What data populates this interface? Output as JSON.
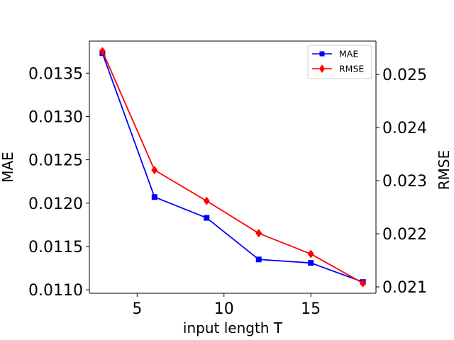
{
  "chart_data": {
    "type": "line",
    "xlabel": "input length T",
    "xlim": [
      2.25,
      18.75
    ],
    "xticks": [
      5,
      10,
      15
    ],
    "x": [
      3,
      6,
      9,
      12,
      15,
      18
    ],
    "axes": {
      "left": {
        "label": "MAE",
        "lim": [
          0.01096,
          0.01387
        ],
        "ticks": [
          0.011,
          0.0115,
          0.012,
          0.0125,
          0.013,
          0.0135
        ],
        "tick_labels": [
          "0.0110",
          "0.0115",
          "0.0120",
          "0.0125",
          "0.0130",
          "0.0135"
        ]
      },
      "right": {
        "label": "RMSE",
        "lim": [
          0.02088,
          0.02563
        ],
        "ticks": [
          0.021,
          0.022,
          0.023,
          0.024,
          0.025
        ],
        "tick_labels": [
          "0.021",
          "0.022",
          "0.023",
          "0.024",
          "0.025"
        ]
      }
    },
    "series": [
      {
        "name": "MAE",
        "axis": "left",
        "color": "#0000ff",
        "marker": "square",
        "values": [
          0.01373,
          0.01207,
          0.01183,
          0.01135,
          0.01131,
          0.01109
        ]
      },
      {
        "name": "RMSE",
        "axis": "right",
        "color": "#ff0000",
        "marker": "diamond",
        "values": [
          0.02544,
          0.0232,
          0.02262,
          0.02201,
          0.02162,
          0.02107
        ]
      }
    ],
    "legend": {
      "position": "top-right",
      "entries": [
        "MAE",
        "RMSE"
      ]
    }
  }
}
